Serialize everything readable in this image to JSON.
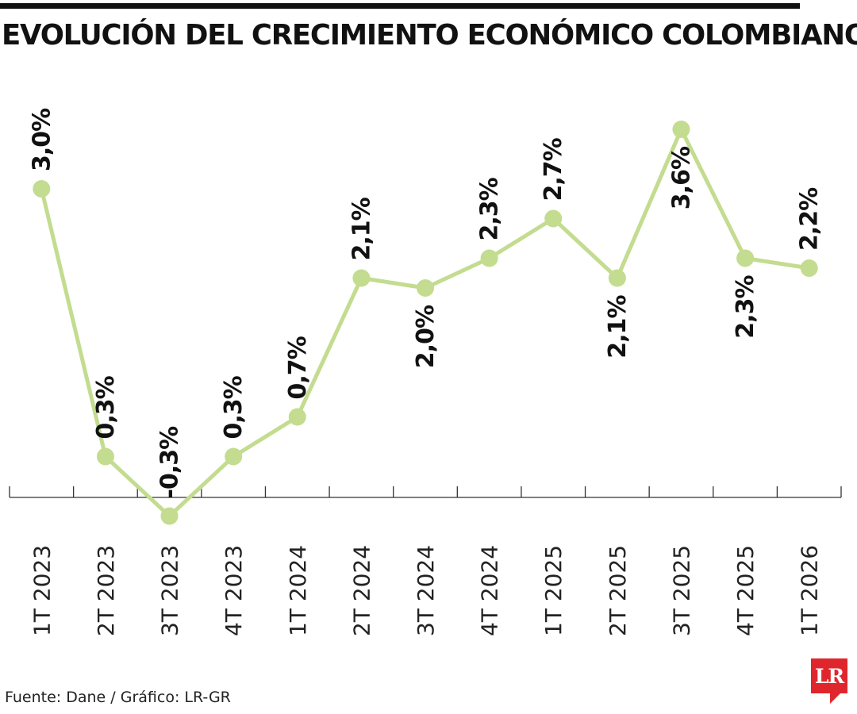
{
  "chart_data": {
    "type": "line",
    "title": "EVOLUCIÓN DEL CRECIMIENTO ECONÓMICO COLOMBIANO",
    "categories": [
      "1T 2023",
      "2T 2023",
      "3T 2023",
      "4T 2023",
      "1T 2024",
      "2T 2024",
      "3T 2024",
      "4T 2024",
      "1T 2025",
      "2T 2025",
      "3T 2025",
      "4T 2025",
      "1T 2026"
    ],
    "values": [
      3.0,
      0.3,
      -0.3,
      0.3,
      0.7,
      2.1,
      2.0,
      2.3,
      2.7,
      2.1,
      3.6,
      2.3,
      2.2
    ],
    "labels": [
      "3,0%",
      "0,3%",
      "-0,3%",
      "0,3%",
      "0,7%",
      "2,1%",
      "2,0%",
      "2,3%",
      "2,7%",
      "2,1%",
      "3,6%",
      "2,3%",
      "2,2%"
    ],
    "label_side": [
      "above",
      "above",
      "above",
      "above",
      "above",
      "above",
      "below",
      "above",
      "above",
      "below",
      "below",
      "below",
      "above"
    ],
    "xlabel": "",
    "ylabel": "",
    "ylim": [
      -0.5,
      3.9
    ],
    "grid": false,
    "line_color": "#c3dc8f",
    "marker_color": "#c3dc8f"
  },
  "source": "Fuente: Dane / Gráfico: LR-GR",
  "logo_text": "LR"
}
